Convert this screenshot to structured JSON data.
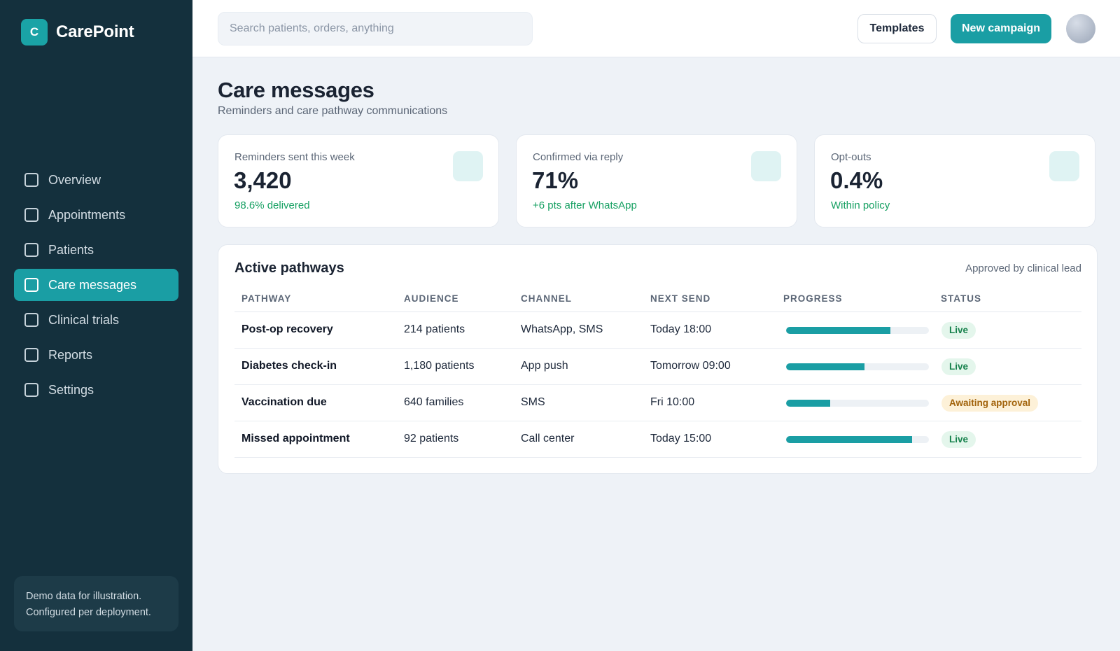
{
  "brand": {
    "logo_letter": "C",
    "name": "CarePoint"
  },
  "sidebar": {
    "items": [
      {
        "label": "Overview",
        "active": false
      },
      {
        "label": "Appointments",
        "active": false
      },
      {
        "label": "Patients",
        "active": false
      },
      {
        "label": "Care messages",
        "active": true
      },
      {
        "label": "Clinical trials",
        "active": false
      },
      {
        "label": "Reports",
        "active": false
      },
      {
        "label": "Settings",
        "active": false
      }
    ],
    "note_line1": "Demo data for illustration.",
    "note_line2": "Configured per deployment."
  },
  "topbar": {
    "search_placeholder": "Search patients, orders, anything",
    "templates_label": "Templates",
    "new_campaign_label": "New campaign"
  },
  "page": {
    "title": "Care messages",
    "subtitle": "Reminders and care pathway communications"
  },
  "stats": [
    {
      "label": "Reminders sent this week",
      "value": "3,420",
      "sub": "98.6% delivered"
    },
    {
      "label": "Confirmed via reply",
      "value": "71%",
      "sub": "+6 pts after WhatsApp"
    },
    {
      "label": "Opt-outs",
      "value": "0.4%",
      "sub": "Within policy"
    }
  ],
  "pathways": {
    "title": "Active pathways",
    "note": "Approved by clinical lead",
    "columns": [
      "PATHWAY",
      "AUDIENCE",
      "CHANNEL",
      "NEXT SEND",
      "PROGRESS",
      "STATUS"
    ],
    "rows": [
      {
        "pathway": "Post-op recovery",
        "audience": "214 patients",
        "channel": "WhatsApp, SMS",
        "next_send": "Today 18:00",
        "progress": 0.73,
        "status": "Live",
        "status_kind": "live"
      },
      {
        "pathway": "Diabetes check-in",
        "audience": "1,180 patients",
        "channel": "App push",
        "next_send": "Tomorrow 09:00",
        "progress": 0.55,
        "status": "Live",
        "status_kind": "live"
      },
      {
        "pathway": "Vaccination due",
        "audience": "640 families",
        "channel": "SMS",
        "next_send": "Fri 10:00",
        "progress": 0.31,
        "status": "Awaiting approval",
        "status_kind": "awaiting"
      },
      {
        "pathway": "Missed appointment",
        "audience": "92 patients",
        "channel": "Call center",
        "next_send": "Today 15:00",
        "progress": 0.88,
        "status": "Live",
        "status_kind": "live"
      }
    ]
  },
  "colors": {
    "sidebar_bg": "#14303d",
    "accent": "#1a9ea4",
    "live_badge": "#e4f6ec",
    "awaiting_badge": "#fdf1d8",
    "positive_text": "#16a062"
  }
}
